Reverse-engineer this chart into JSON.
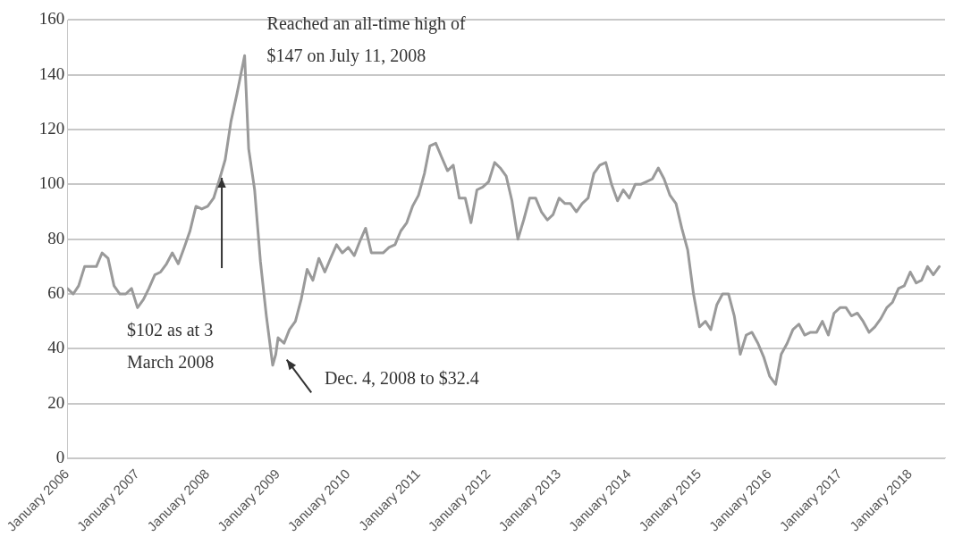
{
  "chart_data": {
    "type": "line",
    "x": [
      "2006-01",
      "2006-02",
      "2006-03",
      "2006-04",
      "2006-05",
      "2006-06",
      "2006-07",
      "2006-08",
      "2006-09",
      "2006-10",
      "2006-11",
      "2006-12",
      "2007-01",
      "2007-02",
      "2007-03",
      "2007-04",
      "2007-05",
      "2007-06",
      "2007-07",
      "2007-08",
      "2007-09",
      "2007-10",
      "2007-11",
      "2007-12",
      "2008-01",
      "2008-02",
      "2008-03-03",
      "2008-04",
      "2008-05",
      "2008-06",
      "2008-07-11",
      "2008-08",
      "2008-09",
      "2008-10",
      "2008-11",
      "2008-12-04",
      "2008-12-20",
      "2009-01",
      "2009-02",
      "2009-03",
      "2009-04",
      "2009-05",
      "2009-06",
      "2009-07",
      "2009-08",
      "2009-09",
      "2009-10",
      "2009-11",
      "2009-12",
      "2010-01",
      "2010-02",
      "2010-03",
      "2010-04",
      "2010-05",
      "2010-06",
      "2010-07",
      "2010-08",
      "2010-09",
      "2010-10",
      "2010-11",
      "2010-12",
      "2011-01",
      "2011-02",
      "2011-03",
      "2011-04",
      "2011-05",
      "2011-06",
      "2011-07",
      "2011-08",
      "2011-09",
      "2011-10",
      "2011-11",
      "2011-12",
      "2012-01",
      "2012-02",
      "2012-03",
      "2012-04",
      "2012-05",
      "2012-06",
      "2012-07",
      "2012-08",
      "2012-09",
      "2012-10",
      "2012-11",
      "2012-12",
      "2013-01",
      "2013-02",
      "2013-03",
      "2013-04",
      "2013-05",
      "2013-06",
      "2013-07",
      "2013-08",
      "2013-09",
      "2013-10",
      "2013-11",
      "2013-12",
      "2014-01",
      "2014-02",
      "2014-03",
      "2014-04",
      "2014-05",
      "2014-06",
      "2014-07",
      "2014-08",
      "2014-09",
      "2014-10",
      "2014-11",
      "2014-12",
      "2015-01",
      "2015-02",
      "2015-03",
      "2015-04",
      "2015-05",
      "2015-06",
      "2015-07",
      "2015-08",
      "2015-09",
      "2015-10",
      "2015-11",
      "2015-12",
      "2016-01",
      "2016-02",
      "2016-03",
      "2016-04",
      "2016-05",
      "2016-06",
      "2016-07",
      "2016-08",
      "2016-09",
      "2016-10",
      "2016-11",
      "2016-12",
      "2017-01",
      "2017-02",
      "2017-03",
      "2017-04",
      "2017-05",
      "2017-06",
      "2017-07",
      "2017-08",
      "2017-09",
      "2017-10",
      "2017-11",
      "2017-12",
      "2018-01",
      "2018-02",
      "2018-03",
      "2018-04",
      "2018-05",
      "2018-06"
    ],
    "series": [
      {
        "color": "#9a9a9a",
        "values": [
          62,
          60,
          63,
          70,
          70,
          70,
          75,
          73,
          63,
          60,
          60,
          62,
          55,
          58,
          62,
          67,
          68,
          71,
          75,
          71,
          77,
          83,
          92,
          91,
          92,
          95,
          102,
          109,
          123,
          133,
          147,
          113,
          98,
          72,
          52,
          34,
          38,
          44,
          42,
          47,
          50,
          58,
          69,
          65,
          73,
          68,
          73,
          78,
          75,
          77,
          74,
          79,
          84,
          75,
          75,
          75,
          77,
          78,
          83,
          86,
          92,
          96,
          104,
          114,
          115,
          110,
          105,
          107,
          95,
          95,
          86,
          98,
          99,
          101,
          108,
          106,
          103,
          94,
          80,
          87,
          95,
          95,
          90,
          87,
          89,
          95,
          93,
          93,
          90,
          93,
          95,
          104,
          107,
          108,
          100,
          94,
          98,
          95,
          100,
          100,
          101,
          102,
          106,
          102,
          96,
          93,
          84,
          76,
          60,
          48,
          50,
          47,
          56,
          60,
          60,
          52,
          38,
          45,
          46,
          42,
          37,
          30,
          27,
          38,
          42,
          47,
          49,
          45,
          46,
          46,
          50,
          45,
          53,
          55,
          55,
          52,
          53,
          50,
          46,
          48,
          51,
          55,
          57,
          62,
          63,
          68,
          64,
          65,
          70,
          67,
          70
        ]
      }
    ],
    "xlim": [
      "2006-01",
      "2018-07"
    ],
    "xticks": [
      {
        "value": "2006-01",
        "label": "January 2006"
      },
      {
        "value": "2007-01",
        "label": "January 2007"
      },
      {
        "value": "2008-01",
        "label": "January 2008"
      },
      {
        "value": "2009-01",
        "label": "January 2009"
      },
      {
        "value": "2010-01",
        "label": "January 2010"
      },
      {
        "value": "2011-01",
        "label": "January 2011"
      },
      {
        "value": "2012-01",
        "label": "January 2012"
      },
      {
        "value": "2013-01",
        "label": "January 2013"
      },
      {
        "value": "2014-01",
        "label": "January 2014"
      },
      {
        "value": "2015-01",
        "label": "January 2015"
      },
      {
        "value": "2016-01",
        "label": "January 2016"
      },
      {
        "value": "2017-01",
        "label": "January 2017"
      },
      {
        "value": "2018-01",
        "label": "January 2018"
      }
    ],
    "ylim": [
      0,
      160
    ],
    "yticks": [
      0,
      20,
      40,
      60,
      80,
      100,
      120,
      140,
      160
    ],
    "grid": "y",
    "annotations": [
      {
        "text": "Reached an all-time high of $147 on July 11, 2008",
        "x": "2008-07-11",
        "y": 147
      },
      "$102 as at 3 March 2008",
      "Dec. 4, 2008 to $32.4"
    ]
  }
}
